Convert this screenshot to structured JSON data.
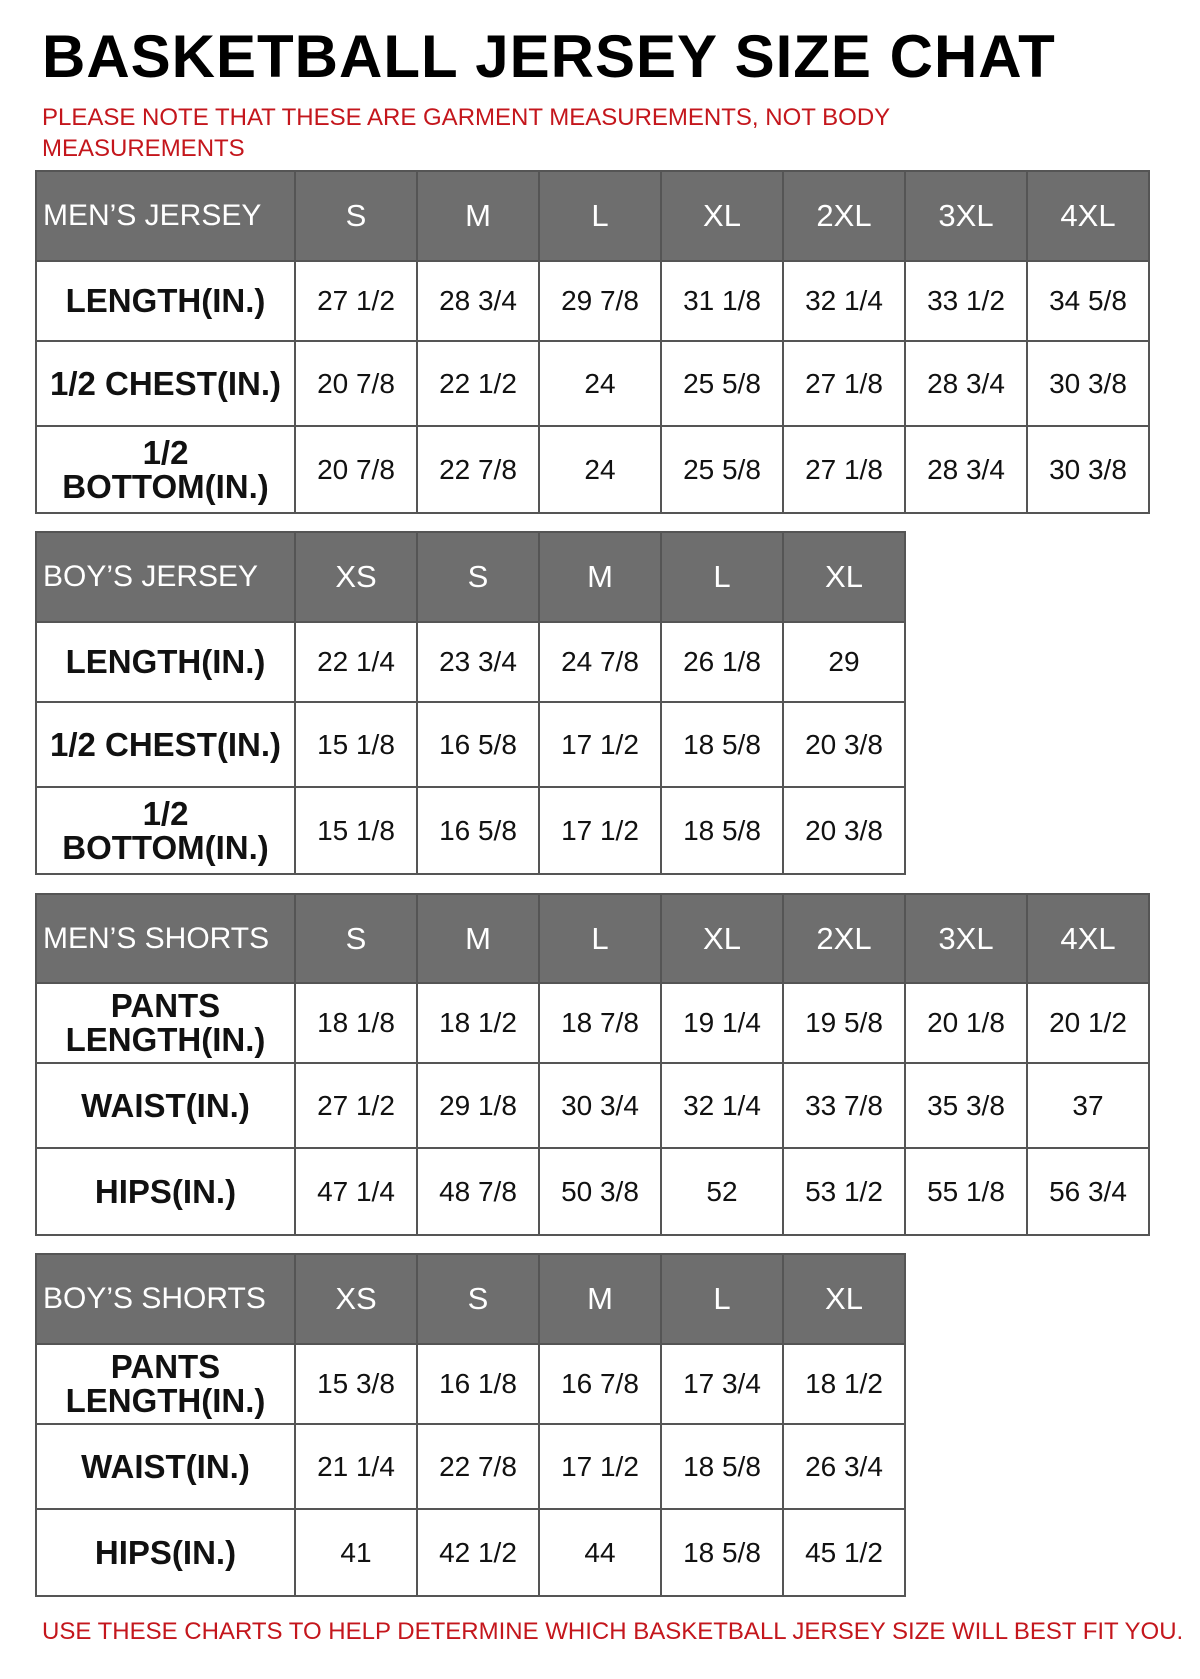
{
  "title": "BASKETBALL JERSEY SIZE CHAT",
  "note": "PLEASE NOTE THAT THESE ARE GARMENT MEASUREMENTS, NOT BODY MEASUREMENTS",
  "footer": "USE THESE CHARTS TO HELP DETERMINE WHICH BASKETBALL JERSEY SIZE WILL BEST FIT YOU.",
  "colors": {
    "header_bg": "#6e6e6e",
    "note_red": "#c4161c"
  },
  "tables": [
    {
      "header": "MEN’S JERSEY",
      "sizes": [
        "S",
        "M",
        "L",
        "XL",
        "2XL",
        "3XL",
        "4XL"
      ],
      "rows": [
        {
          "label": "LENGTH(IN.)",
          "values": [
            "27 1/2",
            "28 3/4",
            "29 7/8",
            "31 1/8",
            "32 1/4",
            "33 1/2",
            "34 5/8"
          ]
        },
        {
          "label": "1/2 CHEST(IN.)",
          "values": [
            "20 7/8",
            "22 1/2",
            "24",
            "25 5/8",
            "27 1/8",
            "28 3/4",
            "30 3/8"
          ]
        },
        {
          "label": "1/2 BOTTOM(IN.)",
          "values": [
            "20 7/8",
            "22 7/8",
            "24",
            "25 5/8",
            "27 1/8",
            "28 3/4",
            "30 3/8"
          ]
        }
      ]
    },
    {
      "header": "BOY’S JERSEY",
      "sizes": [
        "XS",
        "S",
        "M",
        "L",
        "XL"
      ],
      "rows": [
        {
          "label": "LENGTH(IN.)",
          "values": [
            "22 1/4",
            "23 3/4",
            "24 7/8",
            "26 1/8",
            "29"
          ]
        },
        {
          "label": "1/2 CHEST(IN.)",
          "values": [
            "15 1/8",
            "16 5/8",
            "17 1/2",
            "18 5/8",
            "20 3/8"
          ]
        },
        {
          "label": "1/2 BOTTOM(IN.)",
          "values": [
            "15 1/8",
            "16 5/8",
            "17 1/2",
            "18 5/8",
            "20 3/8"
          ]
        }
      ]
    },
    {
      "header": "MEN’S SHORTS",
      "sizes": [
        "S",
        "M",
        "L",
        "XL",
        "2XL",
        "3XL",
        "4XL"
      ],
      "rows": [
        {
          "label": "PANTS LENGTH(IN.)",
          "values": [
            "18 1/8",
            "18 1/2",
            "18 7/8",
            "19 1/4",
            "19 5/8",
            "20 1/8",
            "20 1/2"
          ]
        },
        {
          "label": "WAIST(IN.)",
          "values": [
            "27 1/2",
            "29 1/8",
            "30 3/4",
            "32 1/4",
            "33 7/8",
            "35 3/8",
            "37"
          ]
        },
        {
          "label": "HIPS(IN.)",
          "values": [
            "47 1/4",
            "48 7/8",
            "50 3/8",
            "52",
            "53 1/2",
            "55 1/8",
            "56 3/4"
          ]
        }
      ]
    },
    {
      "header": "BOY’S SHORTS",
      "sizes": [
        "XS",
        "S",
        "M",
        "L",
        "XL"
      ],
      "rows": [
        {
          "label": "PANTS LENGTH(IN.)",
          "values": [
            "15 3/8",
            "16 1/8",
            "16 7/8",
            "17 3/4",
            "18 1/2"
          ]
        },
        {
          "label": "WAIST(IN.)",
          "values": [
            "21 1/4",
            "22 7/8",
            "17 1/2",
            "18 5/8",
            "26 3/4"
          ]
        },
        {
          "label": "HIPS(IN.)",
          "values": [
            "41",
            "42 1/2",
            "44",
            "18 5/8",
            "45 1/2"
          ]
        }
      ]
    }
  ]
}
